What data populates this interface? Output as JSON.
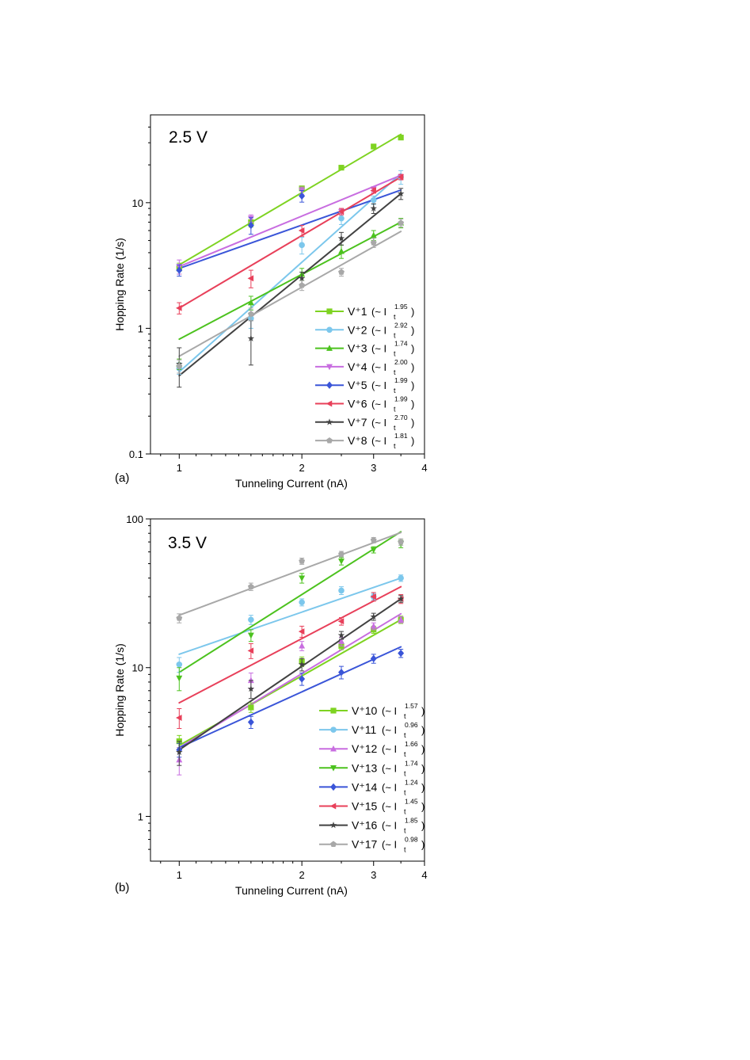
{
  "chart_data": [
    {
      "panel_label": "(a)",
      "type": "scatter",
      "annotation": "2.5 V",
      "xlabel": "Tunneling Current (nA)",
      "ylabel": "Hopping Rate (1/s)",
      "xscale": "log",
      "yscale": "log",
      "xlim": [
        0.85,
        4
      ],
      "ylim": [
        0.1,
        50
      ],
      "xticks": [
        1,
        2,
        3,
        4
      ],
      "xtick_labels": [
        "1",
        "2",
        "3",
        "4"
      ],
      "yticks": [
        0.1,
        1,
        10
      ],
      "ytick_labels": [
        "0.1",
        "1",
        "10"
      ],
      "legend_location": "bottom-right",
      "x": [
        1,
        1.5,
        2,
        2.5,
        3,
        3.5
      ],
      "series": [
        {
          "name": "V⁺1",
          "exponent": "1.95",
          "color": "#7ed321",
          "marker": "square",
          "values": [
            3.0,
            7.0,
            13,
            19,
            28,
            33
          ],
          "errors": [
            0.3,
            0.6,
            0.5,
            0.6,
            0.8,
            1.0
          ],
          "fit": [
            3.2,
            35
          ]
        },
        {
          "name": "V⁺2",
          "exponent": "2.92",
          "color": "#7cc7ec",
          "marker": "circle",
          "values": [
            0.48,
            1.2,
            4.6,
            7.5,
            10.5,
            16
          ],
          "errors": [
            0.05,
            0.2,
            0.7,
            0.8,
            0.8,
            2.0
          ],
          "fit": [
            0.45,
            17
          ]
        },
        {
          "name": "V⁺3",
          "exponent": "1.74",
          "color": "#4cc21e",
          "marker": "triangle-up",
          "values": [
            0.52,
            1.6,
            2.7,
            4.1,
            5.5,
            6.9
          ],
          "errors": [
            0.05,
            0.2,
            0.3,
            0.5,
            0.5,
            0.6
          ],
          "fit": [
            0.82,
            7.0
          ]
        },
        {
          "name": "V⁺4",
          "exponent": "2.00",
          "color": "#c86de0",
          "marker": "triangle-down",
          "values": [
            3.1,
            7.5,
            12.5,
            8.5,
            12.8,
            16
          ],
          "errors": [
            0.4,
            0.5,
            0.8,
            0.5,
            0.6,
            0.8
          ],
          "fit": [
            3.1,
            16.5
          ]
        },
        {
          "name": "V⁺5",
          "exponent": "1.99",
          "color": "#3a55d8",
          "marker": "diamond",
          "values": [
            2.9,
            6.6,
            11.3
          ],
          "errors": [
            0.3,
            1.0,
            1.2
          ],
          "fit": [
            3.0,
            12.6
          ]
        },
        {
          "name": "V⁺6",
          "exponent": "1.99",
          "color": "#e8405a",
          "marker": "triangle-left",
          "values": [
            1.45,
            2.5,
            6.0,
            8.5,
            12.5,
            16
          ],
          "errors": [
            0.15,
            0.4,
            0.6,
            0.5,
            0.6,
            0.8
          ],
          "fit": [
            1.45,
            16
          ]
        },
        {
          "name": "V⁺7",
          "exponent": "2.70",
          "color": "#424242",
          "marker": "star",
          "values": [
            0.52,
            0.83,
            2.5,
            5.2,
            9.0,
            11.8
          ],
          "errors": [
            0.18,
            0.32,
            0.3,
            0.6,
            0.8,
            1.2
          ],
          "fit": [
            0.42,
            11.8
          ]
        },
        {
          "name": "V⁺8",
          "exponent": "1.81",
          "color": "#a8a8a8",
          "marker": "pentagon",
          "values": [
            0.5,
            1.3,
            2.2,
            2.8,
            4.8,
            6.9
          ],
          "errors": [
            0.06,
            0.15,
            0.2,
            0.2,
            0.4,
            0.5
          ],
          "fit": [
            0.6,
            5.9
          ]
        }
      ]
    },
    {
      "panel_label": "(b)",
      "type": "scatter",
      "annotation": "3.5 V",
      "xlabel": "Tunneling Current (nA)",
      "ylabel": "Hopping Rate (1/s)",
      "xscale": "log",
      "yscale": "log",
      "xlim": [
        0.85,
        4
      ],
      "ylim": [
        0.5,
        100
      ],
      "xticks": [
        1,
        2,
        3,
        4
      ],
      "xtick_labels": [
        "1",
        "2",
        "3",
        "4"
      ],
      "yticks": [
        1,
        10,
        100
      ],
      "ytick_labels": [
        "1",
        "10",
        "100"
      ],
      "legend_location": "bottom-right",
      "x": [
        1,
        1.5,
        2,
        2.5,
        3,
        3.5
      ],
      "series": [
        {
          "name": "V⁺10",
          "exponent": "1.57",
          "color": "#7ed321",
          "marker": "square",
          "values": [
            3.2,
            5.4,
            11,
            14,
            18,
            21
          ],
          "errors": [
            0.3,
            0.4,
            0.8,
            0.8,
            1.0,
            1.2
          ],
          "fit": [
            3.0,
            21
          ]
        },
        {
          "name": "V⁺11",
          "exponent": "0.96",
          "color": "#7cc7ec",
          "marker": "circle",
          "values": [
            10.5,
            21,
            27.5,
            33,
            30,
            40
          ],
          "errors": [
            1.2,
            1.5,
            1.5,
            2.0,
            1.5,
            2.0
          ],
          "fit": [
            12.3,
            40
          ]
        },
        {
          "name": "V⁺12",
          "exponent": "1.66",
          "color": "#c86de0",
          "marker": "triangle-up",
          "values": [
            2.4,
            8.2,
            14,
            15,
            19,
            21
          ],
          "errors": [
            0.5,
            1.0,
            1.0,
            1.0,
            1.0,
            1.0
          ],
          "fit": [
            2.9,
            23
          ]
        },
        {
          "name": "V⁺13",
          "exponent": "1.74",
          "color": "#4cc21e",
          "marker": "triangle-down",
          "values": [
            8.5,
            16.5,
            40,
            52,
            62,
            68
          ],
          "errors": [
            1.5,
            1.5,
            3.0,
            3.0,
            3.0,
            4.0
          ],
          "fit": [
            9.3,
            82
          ]
        },
        {
          "name": "V⁺14",
          "exponent": "1.24",
          "color": "#3a55d8",
          "marker": "diamond",
          "values": [
            2.8,
            4.3,
            8.4,
            9.3,
            11.5,
            12.5
          ],
          "errors": [
            0.3,
            0.4,
            0.8,
            0.9,
            0.8,
            0.8
          ],
          "fit": [
            2.9,
            13.8
          ]
        },
        {
          "name": "V⁺15",
          "exponent": "1.45",
          "color": "#e8405a",
          "marker": "triangle-left",
          "values": [
            4.6,
            13,
            17.5,
            20.5,
            30,
            29
          ],
          "errors": [
            0.7,
            1.5,
            1.5,
            1.2,
            2.0,
            2.0
          ],
          "fit": [
            5.8,
            35
          ]
        },
        {
          "name": "V⁺16",
          "exponent": "1.85",
          "color": "#424242",
          "marker": "star",
          "values": [
            2.7,
            7.2,
            10.5,
            16.5,
            22,
            29
          ],
          "errors": [
            0.5,
            1.0,
            1.0,
            1.0,
            1.2,
            1.5
          ],
          "fit": [
            2.8,
            29
          ]
        },
        {
          "name": "V⁺17",
          "exponent": "0.98",
          "color": "#a8a8a8",
          "marker": "pentagon",
          "values": [
            21.5,
            35,
            52,
            58,
            72,
            70
          ],
          "errors": [
            1.5,
            2.0,
            2.5,
            2.5,
            3.0,
            3.5
          ],
          "fit": [
            22.5,
            81
          ]
        }
      ]
    }
  ]
}
